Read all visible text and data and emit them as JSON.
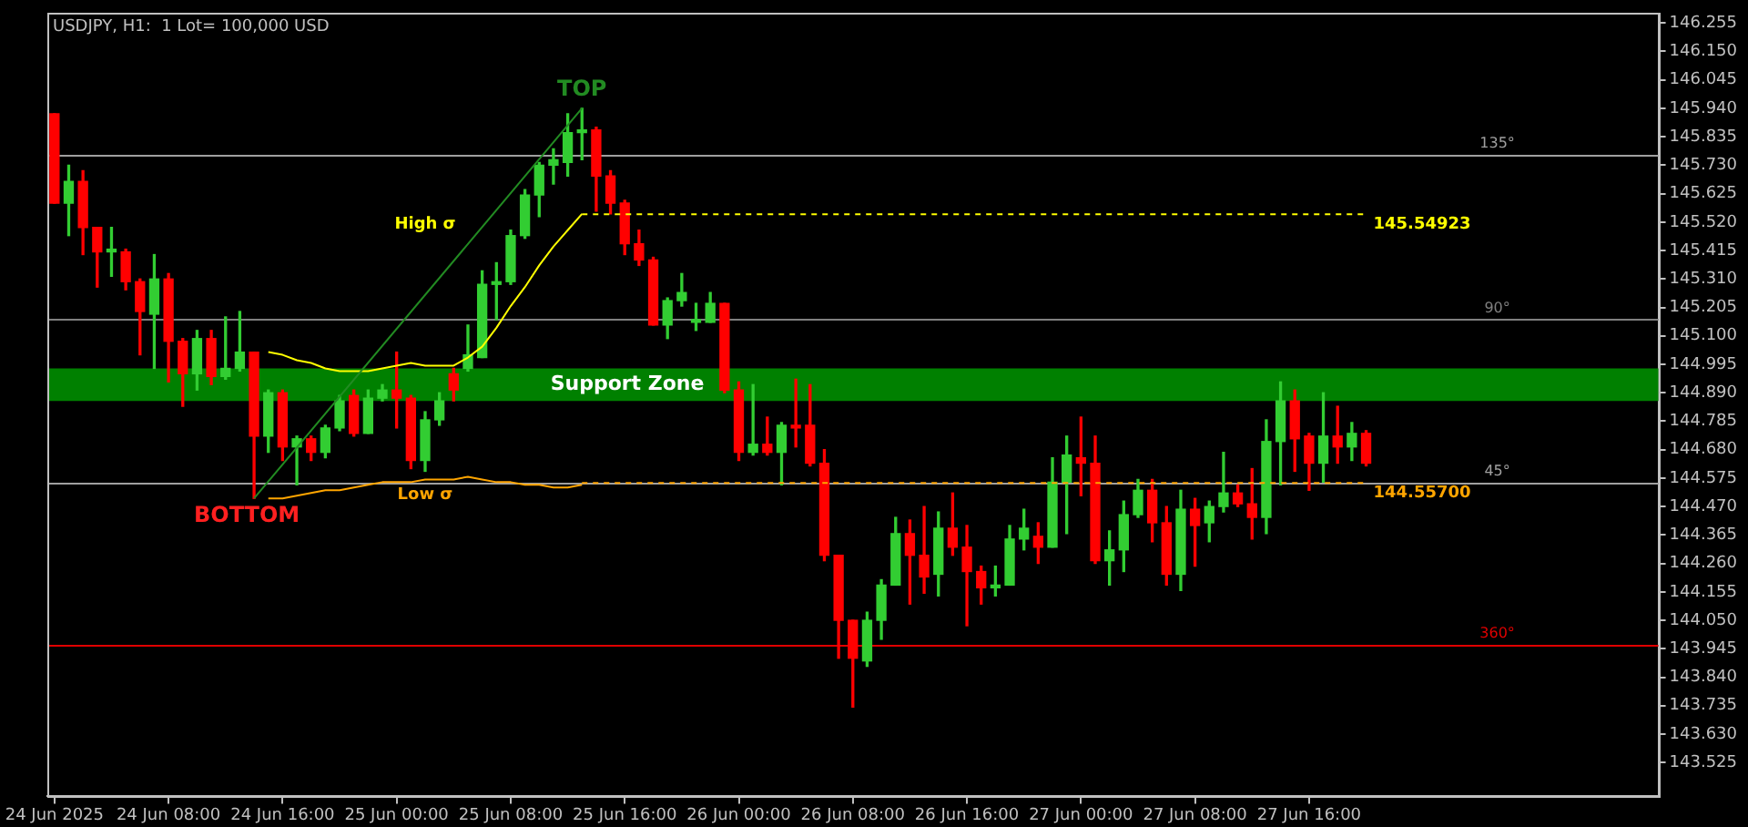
{
  "chart_data": {
    "type": "candlestick",
    "title": "USDJPY, H1:  1 Lot= 100,000 USD",
    "categories": [
      "24 Jun 2025",
      null,
      null,
      null,
      null,
      null,
      null,
      null,
      "24 Jun 08:00",
      null,
      null,
      null,
      null,
      null,
      null,
      null,
      "24 Jun 16:00",
      null,
      null,
      null,
      null,
      null,
      null,
      null,
      "25 Jun 00:00",
      null,
      null,
      null,
      null,
      null,
      null,
      null,
      "25 Jun 08:00",
      null,
      null,
      null,
      null,
      null,
      null,
      null,
      "25 Jun 16:00",
      null,
      null,
      null,
      null,
      null,
      null,
      null,
      "26 Jun 00:00",
      null,
      null,
      null,
      null,
      null,
      null,
      null,
      "26 Jun 08:00",
      null,
      null,
      null,
      null,
      null,
      null,
      null,
      "26 Jun 16:00",
      null,
      null,
      null,
      null,
      null,
      null,
      null,
      "27 Jun 00:00",
      null,
      null,
      null,
      null,
      null,
      null,
      null,
      "27 Jun 08:00",
      null,
      null,
      null,
      null,
      null,
      null,
      null,
      "27 Jun 16:00",
      null,
      null,
      null,
      null,
      null,
      null,
      null,
      null,
      null,
      null,
      null,
      null,
      null,
      null,
      null,
      null,
      null,
      null,
      null,
      null,
      null,
      null,
      null,
      null
    ],
    "ylim": [
      143.4,
      146.29
    ],
    "yticks": [
      146.255,
      {
        "value": 146.15,
        "label": "146.150"
      },
      146.045,
      {
        "value": 145.94,
        "label": "145.940"
      },
      145.835,
      {
        "value": 145.73,
        "label": "145.730"
      },
      145.625,
      {
        "value": 145.52,
        "label": "145.520"
      },
      145.415,
      {
        "value": 145.31,
        "label": "145.310"
      },
      145.205,
      {
        "value": 145.1,
        "label": "145.100"
      },
      144.995,
      {
        "value": 144.89,
        "label": "144.890"
      },
      144.785,
      {
        "value": 144.68,
        "label": "144.680"
      },
      144.575,
      {
        "value": 144.47,
        "label": "144.470"
      },
      144.365,
      {
        "value": 144.26,
        "label": "144.260"
      },
      144.155,
      {
        "value": 144.05,
        "label": "144.050"
      },
      143.945,
      {
        "value": 143.84,
        "label": "143.840"
      },
      143.735,
      {
        "value": 143.63,
        "label": "143.630"
      },
      143.525
    ],
    "series": [
      {
        "type": "candlestick",
        "ohlc": [
          [
            145.92,
            145.92,
            145.59,
            145.59
          ],
          [
            145.59,
            145.73,
            145.47,
            145.67
          ],
          [
            145.67,
            145.71,
            145.4,
            145.5
          ],
          [
            145.5,
            145.5,
            145.28,
            145.41
          ],
          [
            145.41,
            145.5,
            145.32,
            145.42
          ],
          [
            145.41,
            145.42,
            145.27,
            145.3
          ],
          [
            145.3,
            145.31,
            145.03,
            145.19
          ],
          [
            145.18,
            145.4,
            144.98,
            145.31
          ],
          [
            145.31,
            145.33,
            144.93,
            145.08
          ],
          [
            145.08,
            145.09,
            144.84,
            144.96
          ],
          [
            144.96,
            145.12,
            144.9,
            145.09
          ],
          [
            145.09,
            145.12,
            144.92,
            144.95
          ],
          [
            144.95,
            145.17,
            144.94,
            144.98
          ],
          [
            144.98,
            145.19,
            144.97,
            145.04
          ],
          [
            145.04,
            145.04,
            144.5,
            144.73
          ],
          [
            144.73,
            144.9,
            144.67,
            144.89
          ],
          [
            144.89,
            144.9,
            144.64,
            144.69
          ],
          [
            144.69,
            144.73,
            144.55,
            144.72
          ],
          [
            144.72,
            144.73,
            144.64,
            144.67
          ],
          [
            144.67,
            144.77,
            144.65,
            144.76
          ],
          [
            144.76,
            144.88,
            144.75,
            144.86
          ],
          [
            144.88,
            144.9,
            144.73,
            144.74
          ],
          [
            144.74,
            144.9,
            144.74,
            144.87
          ],
          [
            144.87,
            144.92,
            144.86,
            144.9
          ],
          [
            144.9,
            145.04,
            144.76,
            144.87
          ],
          [
            144.87,
            144.88,
            144.61,
            144.64
          ],
          [
            144.64,
            144.82,
            144.6,
            144.79
          ],
          [
            144.79,
            144.89,
            144.77,
            144.86
          ],
          [
            144.96,
            144.98,
            144.86,
            144.9
          ],
          [
            144.98,
            145.14,
            144.97,
            145.03
          ],
          [
            145.02,
            145.34,
            145.02,
            145.29
          ],
          [
            145.29,
            145.37,
            145.16,
            145.3
          ],
          [
            145.3,
            145.49,
            145.29,
            145.47
          ],
          [
            145.47,
            145.64,
            145.46,
            145.62
          ],
          [
            145.62,
            145.74,
            145.54,
            145.73
          ],
          [
            145.73,
            145.79,
            145.66,
            145.75
          ],
          [
            145.74,
            145.92,
            145.69,
            145.85
          ],
          [
            145.85,
            145.94,
            145.75,
            145.86
          ],
          [
            145.86,
            145.87,
            145.56,
            145.69
          ],
          [
            145.69,
            145.71,
            145.55,
            145.59
          ],
          [
            145.59,
            145.6,
            145.4,
            145.44
          ],
          [
            145.44,
            145.49,
            145.36,
            145.38
          ],
          [
            145.38,
            145.39,
            145.14,
            145.14
          ],
          [
            145.14,
            145.24,
            145.09,
            145.23
          ],
          [
            145.23,
            145.33,
            145.21,
            145.26
          ],
          [
            145.15,
            145.22,
            145.12,
            145.16
          ],
          [
            145.15,
            145.26,
            145.15,
            145.22
          ],
          [
            145.22,
            145.22,
            144.89,
            144.9
          ],
          [
            144.9,
            144.93,
            144.64,
            144.67
          ],
          [
            144.67,
            144.92,
            144.66,
            144.7
          ],
          [
            144.7,
            144.8,
            144.66,
            144.67
          ],
          [
            144.67,
            144.78,
            144.55,
            144.77
          ],
          [
            144.77,
            144.94,
            144.69,
            144.76
          ],
          [
            144.77,
            144.92,
            144.62,
            144.63
          ],
          [
            144.63,
            144.68,
            144.27,
            144.29
          ],
          [
            144.29,
            144.29,
            143.91,
            144.05
          ],
          [
            144.05,
            144.05,
            143.73,
            143.91
          ],
          [
            143.9,
            144.08,
            143.88,
            144.05
          ],
          [
            144.05,
            144.2,
            143.98,
            144.18
          ],
          [
            144.18,
            144.43,
            144.18,
            144.37
          ],
          [
            144.37,
            144.42,
            144.11,
            144.29
          ],
          [
            144.29,
            144.47,
            144.15,
            144.21
          ],
          [
            144.22,
            144.45,
            144.14,
            144.39
          ],
          [
            144.39,
            144.52,
            144.29,
            144.32
          ],
          [
            144.32,
            144.4,
            144.03,
            144.23
          ],
          [
            144.23,
            144.25,
            144.11,
            144.17
          ],
          [
            144.17,
            144.25,
            144.14,
            144.18
          ],
          [
            144.18,
            144.4,
            144.18,
            144.35
          ],
          [
            144.35,
            144.46,
            144.31,
            144.39
          ],
          [
            144.36,
            144.41,
            144.26,
            144.32
          ],
          [
            144.32,
            144.65,
            144.32,
            144.56
          ],
          [
            144.56,
            144.73,
            144.37,
            144.66
          ],
          [
            144.65,
            144.8,
            144.51,
            144.63
          ],
          [
            144.63,
            144.73,
            144.26,
            144.27
          ],
          [
            144.27,
            144.38,
            144.18,
            144.31
          ],
          [
            144.31,
            144.49,
            144.23,
            144.44
          ],
          [
            144.44,
            144.57,
            144.43,
            144.53
          ],
          [
            144.53,
            144.57,
            144.34,
            144.41
          ],
          [
            144.41,
            144.47,
            144.18,
            144.22
          ],
          [
            144.22,
            144.53,
            144.16,
            144.46
          ],
          [
            144.46,
            144.5,
            144.25,
            144.4
          ],
          [
            144.41,
            144.49,
            144.34,
            144.47
          ],
          [
            144.47,
            144.67,
            144.45,
            144.52
          ],
          [
            144.52,
            144.55,
            144.47,
            144.48
          ],
          [
            144.48,
            144.61,
            144.35,
            144.43
          ],
          [
            144.43,
            144.79,
            144.37,
            144.71
          ],
          [
            144.71,
            144.93,
            144.55,
            144.86
          ],
          [
            144.86,
            144.9,
            144.6,
            144.72
          ],
          [
            144.73,
            144.74,
            144.53,
            144.63
          ],
          [
            144.63,
            144.89,
            144.56,
            144.73
          ],
          [
            144.73,
            144.84,
            144.63,
            144.69
          ],
          [
            144.69,
            144.78,
            144.64,
            144.74
          ],
          [
            144.74,
            144.75,
            144.62,
            144.63
          ],
          null,
          null,
          null,
          null,
          null,
          null,
          null,
          null,
          null,
          null,
          null,
          null,
          null,
          null,
          null,
          null,
          null,
          null,
          null,
          null
        ],
        "colors": [
          "#ff0000",
          "#32cd32",
          "#ff0000",
          "#ff0000",
          "#32cd32",
          "#ff0000",
          "#ff0000",
          "#32cd32",
          "#ff0000",
          "#ff0000",
          "#32cd32",
          "#ff0000",
          "#32cd32",
          "#32cd32",
          "#ff0000",
          "#32cd32",
          "#ff0000",
          "#32cd32",
          "#ff0000",
          "#32cd32",
          "#32cd32",
          "#ff0000",
          "#32cd32",
          "#32cd32",
          "#ff0000",
          "#ff0000",
          "#32cd32",
          "#32cd32",
          "#ff0000",
          "#32cd32",
          "#32cd32",
          "#32cd32",
          "#32cd32",
          "#32cd32",
          "#32cd32",
          "#32cd32",
          "#32cd32",
          "#32cd32",
          "#ff0000",
          "#ff0000",
          "#ff0000",
          "#ff0000",
          "#ff0000",
          "#32cd32",
          "#32cd32",
          "#32cd32",
          "#32cd32",
          "#ff0000",
          "#ff0000",
          "#32cd32",
          "#ff0000",
          "#32cd32",
          "#ff0000",
          "#ff0000",
          "#ff0000",
          "#ff0000",
          "#ff0000",
          "#32cd32",
          "#32cd32",
          "#32cd32",
          "#ff0000",
          "#ff0000",
          "#32cd32",
          "#ff0000",
          "#ff0000",
          "#ff0000",
          "#32cd32",
          "#32cd32",
          "#32cd32",
          "#ff0000",
          "#32cd32",
          "#32cd32",
          "#ff0000",
          "#ff0000",
          "#32cd32",
          "#32cd32",
          "#32cd32",
          "#ff0000",
          "#ff0000",
          "#32cd32",
          "#ff0000",
          "#32cd32",
          "#32cd32",
          "#ff0000",
          "#ff0000",
          "#32cd32",
          "#32cd32",
          "#ff0000",
          "#ff0000",
          "#32cd32",
          "#ff0000",
          "#32cd32",
          "#ff0000",
          null,
          null,
          null,
          null,
          null,
          null,
          null,
          null,
          null,
          null,
          null,
          null,
          null,
          null,
          null,
          null,
          null,
          null,
          null,
          null
        ]
      },
      {
        "type": "line",
        "color": "#228b22",
        "values": [
          null,
          null,
          null,
          null,
          null,
          null,
          null,
          null,
          null,
          null,
          null,
          null,
          null,
          null,
          144.5,
          null,
          null,
          null,
          null,
          null,
          null,
          null,
          null,
          null,
          null,
          null,
          null,
          null,
          null,
          null,
          null,
          null,
          null,
          null,
          null,
          null,
          null,
          145.94,
          null,
          null,
          null,
          null,
          null,
          null,
          null,
          null,
          null,
          null,
          null,
          null,
          null,
          null,
          null,
          null,
          null,
          null,
          null,
          null,
          null,
          null,
          null,
          null,
          null,
          null,
          null,
          null,
          null,
          null,
          null,
          null,
          null,
          null,
          null,
          null,
          null,
          null,
          null,
          null,
          null,
          null,
          null,
          null,
          null,
          null,
          null,
          null,
          null,
          null,
          null,
          null,
          null,
          null,
          null,
          null,
          null,
          null,
          null,
          null,
          null,
          null,
          null,
          null,
          null,
          null,
          null,
          null,
          null,
          null,
          null,
          null,
          null,
          null,
          null
        ]
      },
      {
        "type": "line",
        "name": "High σ",
        "color": "#ffff00",
        "values": [
          null,
          null,
          null,
          null,
          null,
          null,
          null,
          null,
          null,
          null,
          null,
          null,
          null,
          null,
          null,
          145.04,
          145.03,
          145.01,
          145.0,
          144.98,
          144.97,
          144.97,
          144.97,
          144.98,
          144.99,
          145.0,
          144.99,
          144.99,
          144.99,
          145.02,
          145.06,
          145.13,
          145.21,
          145.28,
          145.36,
          145.43,
          145.49,
          145.55,
          null,
          null,
          null,
          null,
          null,
          null,
          null,
          null,
          null,
          null,
          null,
          null,
          null,
          null,
          null,
          null,
          null,
          null,
          null,
          null,
          null,
          null,
          null,
          null,
          null,
          null,
          null,
          null,
          null,
          null,
          null,
          null,
          null,
          null,
          null,
          null,
          null,
          null,
          null,
          null,
          null,
          null,
          null,
          null,
          null,
          null,
          null,
          null,
          null,
          null,
          null,
          null,
          null,
          null,
          null,
          null,
          null,
          null,
          null,
          null,
          null,
          null,
          null,
          null,
          null,
          null,
          null,
          null,
          null,
          null,
          null,
          null,
          null,
          null,
          null
        ]
      },
      {
        "type": "line",
        "name": "Low σ",
        "color": "#ffa500",
        "values": [
          null,
          null,
          null,
          null,
          null,
          null,
          null,
          null,
          null,
          null,
          null,
          null,
          null,
          null,
          null,
          144.5,
          144.5,
          144.51,
          144.52,
          144.53,
          144.53,
          144.54,
          144.55,
          144.56,
          144.56,
          144.56,
          144.57,
          144.57,
          144.57,
          144.58,
          144.57,
          144.56,
          144.56,
          144.55,
          144.55,
          144.54,
          144.54,
          144.55,
          null,
          null,
          null,
          null,
          null,
          null,
          null,
          null,
          null,
          null,
          null,
          null,
          null,
          null,
          null,
          null,
          null,
          null,
          null,
          null,
          null,
          null,
          null,
          null,
          null,
          null,
          null,
          null,
          null,
          null,
          null,
          null,
          null,
          null,
          null,
          null,
          null,
          null,
          null,
          null,
          null,
          null,
          null,
          null,
          null,
          null,
          null,
          null,
          null,
          null,
          null,
          null,
          null,
          null,
          null,
          null,
          null,
          null,
          null,
          null,
          null,
          null,
          null,
          null,
          null,
          null,
          null,
          null,
          null,
          null,
          null,
          null,
          null,
          null,
          null
        ]
      },
      {
        "type": "line",
        "color": "#ffff00",
        "line_style": "dashed",
        "values": [
          null,
          null,
          null,
          null,
          null,
          null,
          null,
          null,
          null,
          null,
          null,
          null,
          null,
          null,
          null,
          null,
          null,
          null,
          null,
          null,
          null,
          null,
          null,
          null,
          null,
          null,
          null,
          null,
          null,
          null,
          null,
          null,
          null,
          null,
          null,
          null,
          null,
          145.54923,
          145.54923,
          145.54923,
          145.54923,
          145.54923,
          145.54923,
          145.54923,
          145.54923,
          145.54923,
          145.54923,
          145.54923,
          145.54923,
          145.54923,
          145.54923,
          145.54923,
          145.54923,
          145.54923,
          145.54923,
          145.54923,
          145.54923,
          145.54923,
          145.54923,
          145.54923,
          145.54923,
          145.54923,
          145.54923,
          145.54923,
          145.54923,
          145.54923,
          145.54923,
          145.54923,
          145.54923,
          145.54923,
          145.54923,
          145.54923,
          145.54923,
          145.54923,
          145.54923,
          145.54923,
          145.54923,
          145.54923,
          145.54923,
          145.54923,
          145.54923,
          145.54923,
          145.54923,
          145.54923,
          145.54923,
          145.54923,
          145.54923,
          145.54923,
          145.54923,
          145.54923,
          145.54923,
          145.54923,
          145.54923,
          null,
          null,
          null,
          null,
          null,
          null,
          null,
          null,
          null,
          null,
          null,
          null,
          null,
          null,
          null,
          null,
          null,
          null,
          null,
          null
        ],
        "value_labels": [
          null,
          null,
          null,
          null,
          null,
          null,
          null,
          null,
          null,
          null,
          null,
          null,
          null,
          null,
          null,
          null,
          null,
          null,
          null,
          null,
          null,
          null,
          null,
          null,
          null,
          null,
          null,
          null,
          null,
          null,
          null,
          null,
          null,
          null,
          null,
          null,
          null,
          null,
          null,
          null,
          null,
          null,
          null,
          null,
          null,
          null,
          null,
          null,
          null,
          null,
          null,
          null,
          null,
          null,
          null,
          null,
          null,
          null,
          null,
          null,
          null,
          null,
          null,
          null,
          null,
          null,
          null,
          null,
          null,
          null,
          null,
          null,
          null,
          null,
          null,
          null,
          null,
          null,
          null,
          null,
          null,
          null,
          null,
          null,
          null,
          null,
          null,
          null,
          null,
          null,
          null,
          null,
          "145.54923",
          null,
          null,
          null,
          null,
          null,
          null,
          null,
          null,
          null,
          null,
          null,
          null,
          null,
          null,
          null,
          null,
          null,
          null,
          null,
          null
        ]
      },
      {
        "type": "line",
        "color": "#ffa500",
        "line_style": "dashed",
        "values": [
          null,
          null,
          null,
          null,
          null,
          null,
          null,
          null,
          null,
          null,
          null,
          null,
          null,
          null,
          null,
          null,
          null,
          null,
          null,
          null,
          null,
          null,
          null,
          null,
          null,
          null,
          null,
          null,
          null,
          null,
          null,
          null,
          null,
          null,
          null,
          null,
          null,
          144.557,
          144.557,
          144.557,
          144.557,
          144.557,
          144.557,
          144.557,
          144.557,
          144.557,
          144.557,
          144.557,
          144.557,
          144.557,
          144.557,
          144.557,
          144.557,
          144.557,
          144.557,
          144.557,
          144.557,
          144.557,
          144.557,
          144.557,
          144.557,
          144.557,
          144.557,
          144.557,
          144.557,
          144.557,
          144.557,
          144.557,
          144.557,
          144.557,
          144.557,
          144.557,
          144.557,
          144.557,
          144.557,
          144.557,
          144.557,
          144.557,
          144.557,
          144.557,
          144.557,
          144.557,
          144.557,
          144.557,
          144.557,
          144.557,
          144.557,
          144.557,
          144.557,
          144.557,
          144.557,
          144.557,
          144.557,
          null,
          null,
          null,
          null,
          null,
          null,
          null,
          null,
          null,
          null,
          null,
          null,
          null,
          null,
          null,
          null,
          null,
          null,
          null,
          null
        ],
        "value_labels": [
          null,
          null,
          null,
          null,
          null,
          null,
          null,
          null,
          null,
          null,
          null,
          null,
          null,
          null,
          null,
          null,
          null,
          null,
          null,
          null,
          null,
          null,
          null,
          null,
          null,
          null,
          null,
          null,
          null,
          null,
          null,
          null,
          null,
          null,
          null,
          null,
          null,
          null,
          null,
          null,
          null,
          null,
          null,
          null,
          null,
          null,
          null,
          null,
          null,
          null,
          null,
          null,
          null,
          null,
          null,
          null,
          null,
          null,
          null,
          null,
          null,
          null,
          null,
          null,
          null,
          null,
          null,
          null,
          null,
          null,
          null,
          null,
          null,
          null,
          null,
          null,
          null,
          null,
          null,
          null,
          null,
          null,
          null,
          null,
          null,
          null,
          null,
          null,
          null,
          null,
          null,
          null,
          "144.55700",
          null,
          null,
          null,
          null,
          null,
          null,
          null,
          null,
          null,
          null,
          null,
          null,
          null,
          null,
          null,
          null,
          null,
          null,
          null,
          null
        ]
      }
    ],
    "bands": [
      {
        "axis": "y",
        "from": 144.86,
        "to": 144.98,
        "label": "Support Zone",
        "color": "#008000"
      }
    ],
    "ref_lines": [
      {
        "axis": "y",
        "value": 145.77,
        "color": "#a0a0a0"
      },
      {
        "axis": "y",
        "value": 145.16,
        "color": "#808080"
      },
      {
        "axis": "y",
        "value": 144.56,
        "color": "#a0a0a0"
      },
      {
        "axis": "y",
        "value": 143.96,
        "color": "#e00000"
      }
    ],
    "annotations": [
      {
        "text": "135°",
        "y": 145.77
      },
      {
        "text": "90°",
        "y": 145.16
      },
      {
        "text": "45°",
        "y": 144.56
      },
      {
        "text": "360°",
        "y": 143.96
      },
      {
        "text": "TOP",
        "y": 145.94
      },
      {
        "text": "BOTTOM",
        "y": 144.5
      }
    ]
  }
}
